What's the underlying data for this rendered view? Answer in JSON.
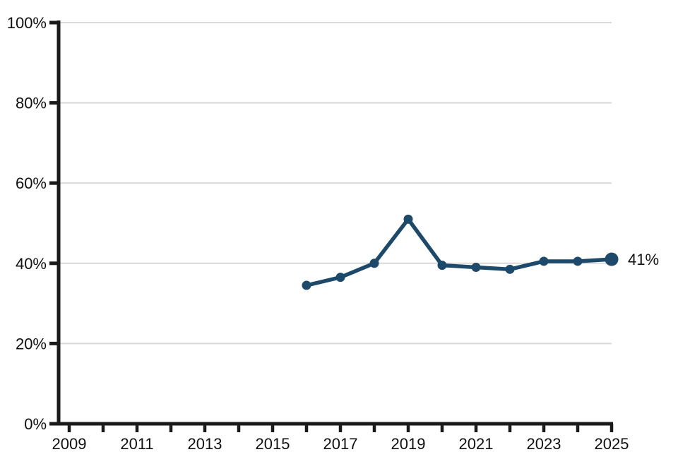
{
  "chart_data": {
    "type": "line",
    "title": "",
    "xlabel": "",
    "ylabel": "",
    "x": [
      2016,
      2017,
      2018,
      2019,
      2020,
      2021,
      2022,
      2023,
      2024,
      2025
    ],
    "series": [
      {
        "name": "percent",
        "values": [
          34.5,
          36.5,
          40,
          51,
          39.5,
          39,
          38.5,
          40.5,
          40.5,
          41
        ]
      }
    ],
    "end_label": "41%",
    "xlim": [
      2009,
      2025
    ],
    "ylim": [
      0,
      100
    ],
    "yticks": {
      "values": [
        0,
        20,
        40,
        60,
        80,
        100
      ],
      "labels": [
        "0%",
        "20%",
        "40%",
        "60%",
        "80%",
        "100%"
      ]
    },
    "xticks": {
      "all_years": [
        2009,
        2010,
        2011,
        2012,
        2013,
        2014,
        2015,
        2016,
        2017,
        2018,
        2019,
        2020,
        2021,
        2022,
        2023,
        2024,
        2025
      ],
      "labeled_values": [
        2009,
        2011,
        2013,
        2015,
        2017,
        2019,
        2021,
        2023,
        2025
      ],
      "labels": [
        "2009",
        "2011",
        "2013",
        "2015",
        "2017",
        "2019",
        "2021",
        "2023",
        "2025"
      ]
    },
    "grid": "horizontal",
    "legend_position": "none",
    "colors": {
      "line": "#1d4a6b",
      "marker": "#1d4a6b",
      "grid": "#d9d9d9",
      "axis": "#1a1a1a",
      "text": "#111111",
      "background": "#ffffff"
    }
  }
}
